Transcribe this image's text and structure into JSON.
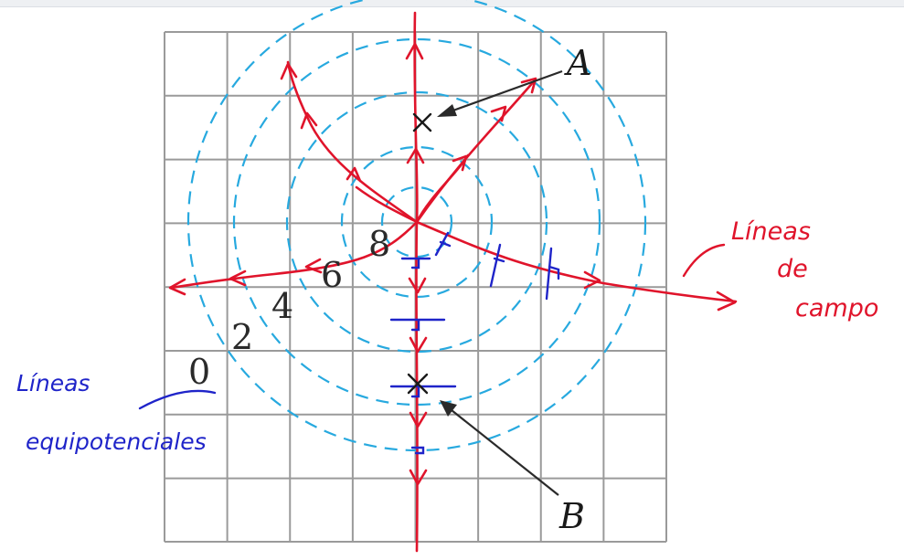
{
  "points": {
    "a_label": "A",
    "b_label": "B"
  },
  "potential_levels": [
    "0",
    "2",
    "4",
    "6",
    "8"
  ],
  "annotations": {
    "field_lines_line1": "Líneas",
    "field_lines_line2": "de",
    "field_lines_line3": "campo",
    "equipotential_line1": "Líneas",
    "equipotential_line2": "equipotenciales"
  },
  "colors": {
    "grid": "#9a9a9a",
    "equipotential": "#27a9df",
    "field_lines": "#e0142b",
    "marks": "#1f24c9",
    "labels": "#1a1a1a"
  }
}
